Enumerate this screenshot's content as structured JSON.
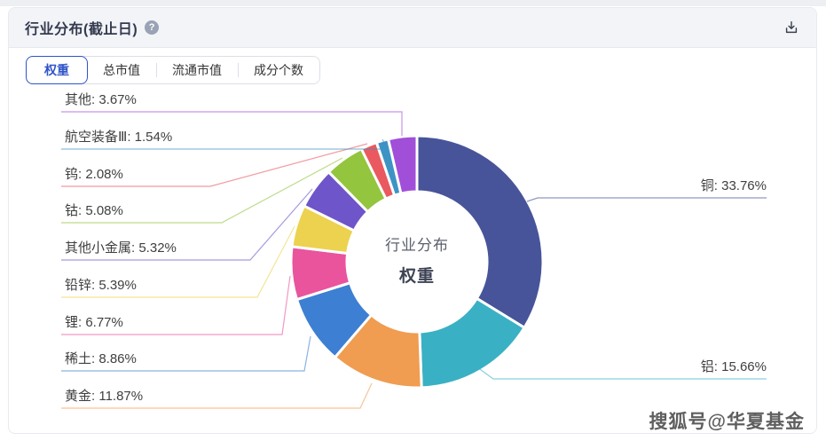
{
  "header": {
    "title": "行业分布(截止日)",
    "help_icon": "?",
    "download_icon_name": "download-icon"
  },
  "tabs": {
    "items": [
      {
        "label": "权重",
        "selected": true
      },
      {
        "label": "总市值",
        "selected": false
      },
      {
        "label": "流通市值",
        "selected": false
      },
      {
        "label": "成分个数",
        "selected": false
      }
    ]
  },
  "chart_center": {
    "line1": "行业分布",
    "line2": "权重"
  },
  "watermark": "搜狐号@华夏基金",
  "colors": {
    "accent_blue": "#2e54c8",
    "header_bg": "#f3f4f8",
    "card_border": "#e8eaf0",
    "label_text": "#3f3f3f"
  },
  "chart_data": {
    "type": "pie",
    "title": "行业分布 权重",
    "label_format": "{name}: {value}%",
    "start_angle": "top",
    "direction": "clockwise",
    "inner_radius_ratio": 0.56,
    "legend_position": "none",
    "categories": [
      "铜",
      "铝",
      "黄金",
      "稀土",
      "锂",
      "铅锌",
      "其他小金属",
      "钴",
      "钨",
      "航空装备Ⅲ",
      "其他"
    ],
    "values": [
      33.76,
      15.66,
      11.87,
      8.86,
      6.77,
      5.39,
      5.32,
      5.08,
      2.08,
      1.54,
      3.67
    ],
    "colors": [
      "#475499",
      "#3ab0c4",
      "#f09c51",
      "#3d7fd2",
      "#e9549d",
      "#ecd24f",
      "#6e55c9",
      "#93c53e",
      "#e9595f",
      "#3d93c5",
      "#a14fd9"
    ]
  }
}
